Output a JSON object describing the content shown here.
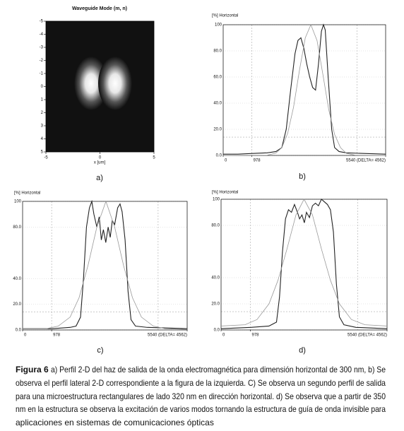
{
  "mode_map": {
    "title": "Waveguide Mode (m, n)",
    "xlabel": "x [um]",
    "xlim": [
      -5,
      5
    ],
    "ylim": [
      -5,
      5
    ],
    "xticks": [
      -5,
      0,
      5
    ],
    "yticks": [
      -5,
      -4,
      -3,
      -2,
      -1,
      0,
      1,
      2,
      3,
      4,
      5
    ],
    "label": "a)"
  },
  "profiles": [
    {
      "label": "b)",
      "y_title": "[%] Horizontal",
      "xlim": [
        0,
        5540
      ],
      "ylim": [
        0,
        100
      ],
      "xticks": [
        0,
        978,
        {
          "value": 5540,
          "label": "5540 (DELTA= 4562)"
        }
      ],
      "yticks": [
        100,
        {
          "value": 80,
          "label": "80.0"
        },
        {
          "value": 60,
          "label": "60.0"
        },
        {
          "value": 40,
          "label": "40.0"
        },
        {
          "value": 20,
          "label": "20.0"
        },
        {
          "value": 0,
          "label": "0.0"
        }
      ],
      "ref_x": [
        978,
        4562
      ],
      "ref_y": [
        14
      ],
      "series": [
        {
          "color": "#222222",
          "x": [
            0,
            500,
            1000,
            1500,
            1800,
            2000,
            2150,
            2300,
            2450,
            2550,
            2650,
            2750,
            2850,
            2950,
            3050,
            3150,
            3250,
            3350,
            3420,
            3480,
            3580,
            3700,
            3800,
            3950,
            4200,
            4800,
            5540
          ],
          "values": [
            1,
            1,
            1.5,
            2,
            3,
            6,
            20,
            50,
            78,
            88,
            90,
            82,
            70,
            60,
            52,
            50,
            70,
            95,
            100,
            96,
            60,
            20,
            6,
            3,
            2,
            1.5,
            1
          ]
        },
        {
          "color": "#999999",
          "x": [
            0,
            1500,
            1800,
            2000,
            2200,
            2400,
            2600,
            2800,
            2990,
            3200,
            3400,
            3600,
            3800,
            4000,
            4200,
            4500,
            5540
          ],
          "values": [
            0,
            0.2,
            1.8,
            6,
            17,
            37,
            65,
            90,
            100,
            88,
            62,
            35,
            16,
            6,
            1.6,
            0.2,
            0
          ]
        }
      ]
    },
    {
      "label": "c)",
      "y_title": "[%] Horizontal",
      "xlim": [
        0,
        5540
      ],
      "ylim": [
        0,
        100
      ],
      "xticks": [
        0,
        978,
        {
          "value": 5540,
          "label": "5540 (DELTA= 4562)"
        }
      ],
      "yticks": [
        100,
        {
          "value": 80,
          "label": "80.0"
        },
        {
          "value": 40,
          "label": "40.0"
        },
        {
          "value": 20,
          "label": "20.0"
        },
        {
          "value": 0,
          "label": "0.0"
        }
      ],
      "ref_x": [
        978,
        4562
      ],
      "ref_y": [
        14
      ],
      "series": [
        {
          "color": "#222222",
          "x": [
            0,
            1000,
            1600,
            1800,
            1950,
            2050,
            2150,
            2250,
            2330,
            2400,
            2500,
            2580,
            2650,
            2720,
            2800,
            2880,
            2950,
            3020,
            3100,
            3200,
            3280,
            3350,
            3450,
            3550,
            3650,
            3800,
            4200,
            5540
          ],
          "values": [
            1,
            1,
            2,
            3,
            10,
            40,
            80,
            95,
            100,
            90,
            80,
            88,
            70,
            78,
            68,
            80,
            72,
            85,
            82,
            95,
            98,
            92,
            70,
            30,
            8,
            3,
            2,
            1
          ]
        },
        {
          "color": "#999999",
          "x": [
            0,
            800,
            1200,
            1600,
            1900,
            2200,
            2500,
            2805,
            3100,
            3400,
            3700,
            4000,
            4400,
            4800,
            5540
          ],
          "values": [
            1,
            1,
            3,
            10,
            25,
            50,
            80,
            100,
            80,
            50,
            25,
            10,
            3,
            1,
            0.5
          ]
        }
      ]
    },
    {
      "label": "d)",
      "y_title": "[%] Horizontal",
      "xlim": [
        0,
        5540
      ],
      "ylim": [
        0,
        100
      ],
      "xticks": [
        0,
        978,
        {
          "value": 5540,
          "label": "5540 (DELTA= 4562)"
        }
      ],
      "yticks": [
        100,
        {
          "value": 80,
          "label": "80.0"
        },
        {
          "value": 40,
          "label": "40.0"
        },
        {
          "value": 20,
          "label": "20.0"
        },
        {
          "value": 0,
          "label": "0.0"
        }
      ],
      "ref_x": [
        978,
        4562
      ],
      "ref_y": [
        14
      ],
      "series": [
        {
          "color": "#222222",
          "x": [
            0,
            1000,
            1600,
            1850,
            1950,
            2050,
            2150,
            2250,
            2350,
            2450,
            2550,
            2620,
            2700,
            2780,
            2850,
            2950,
            3050,
            3150,
            3250,
            3350,
            3450,
            3550,
            3650,
            3750,
            3850,
            3950,
            4100,
            4500,
            5540
          ],
          "values": [
            1,
            2,
            3,
            6,
            25,
            60,
            85,
            92,
            90,
            96,
            90,
            85,
            88,
            82,
            90,
            86,
            95,
            97,
            95,
            100,
            98,
            96,
            92,
            75,
            35,
            10,
            4,
            2,
            1
          ]
        },
        {
          "color": "#999999",
          "x": [
            0,
            800,
            1200,
            1600,
            1900,
            2200,
            2500,
            2770,
            3050,
            3350,
            3650,
            3950,
            4350,
            4800,
            5540
          ],
          "values": [
            3,
            4,
            8,
            20,
            38,
            62,
            88,
            100,
            88,
            62,
            38,
            20,
            8,
            4,
            3
          ]
        }
      ]
    }
  ],
  "caption": {
    "label": "Figura 6",
    "lines": [
      "a) Perfil 2-D del haz de salida de la onda electromagnética para dimensión horizontal de 300 nm, b) Se",
      "observa el perfil lateral 2-D correspondiente a la figura de la izquierda. C) Se observa un segundo perfil de salida",
      "para una microestructura rectangulares de lado 320 nm en dirección horizontal. d) Se observa que a partir de 350",
      "nm en la estructura se observa la excitación de varios modos tornando la estructura de guía de onda invisible para",
      "aplicaciones en sistemas de comunicaciones ópticas"
    ]
  }
}
